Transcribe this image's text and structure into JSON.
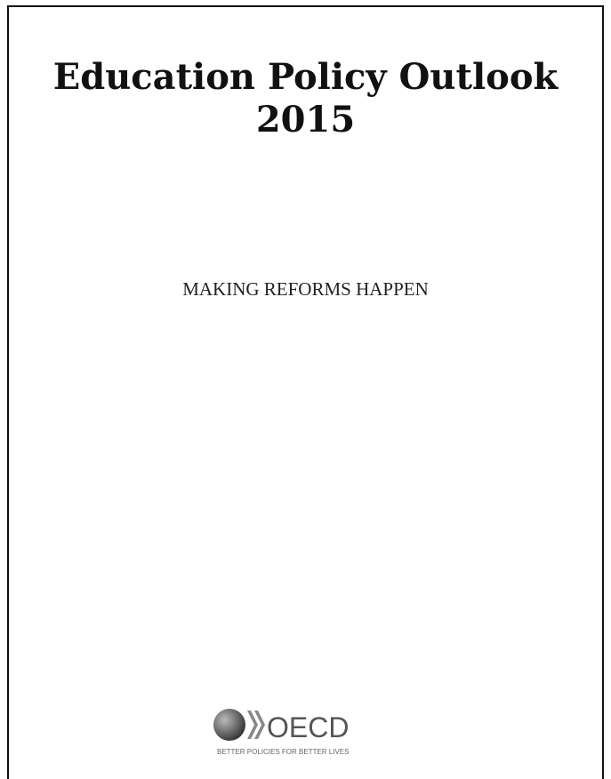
{
  "title": {
    "line1": "Education Policy Outlook",
    "line2": "2015"
  },
  "subtitle": "MAKING REFORMS HAPPEN",
  "logo": {
    "name": "OECD",
    "tagline": "BETTER POLICIES FOR BETTER LIVES"
  }
}
